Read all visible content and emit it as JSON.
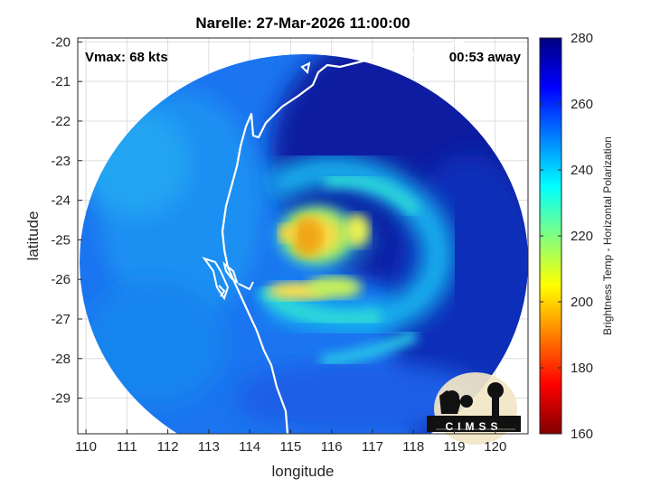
{
  "chart_data": {
    "type": "heatmap",
    "title": "Narelle: 27-Mar-2026 11:00:00",
    "xlabel": "longitude",
    "ylabel": "latitude",
    "xlim": [
      109.8,
      120.8
    ],
    "ylim": [
      -29.9,
      -19.9
    ],
    "xticks": [
      "110",
      "111",
      "112",
      "113",
      "114",
      "115",
      "116",
      "117",
      "118",
      "119",
      "120"
    ],
    "yticks": [
      "-20",
      "-21",
      "-22",
      "-23",
      "-24",
      "-25",
      "-26",
      "-27",
      "-28",
      "-29"
    ],
    "grid": true,
    "annotations": {
      "left": "Vmax: 68 kts",
      "right": "00:53 away"
    },
    "colorbar": {
      "label": "Brightness Temp - Horizontal Polarization",
      "range": [
        160,
        280
      ],
      "ticks": [
        "160",
        "180",
        "200",
        "220",
        "240",
        "260",
        "280"
      ],
      "colormap": "jet"
    },
    "storm_center": {
      "lon": 115.4,
      "lat": -25.0
    },
    "field_min_value": 190,
    "background_value": 268,
    "logo": "CIMSS"
  },
  "colors": {
    "axis": "#262626",
    "grid": "#dddddd",
    "coastline": "#ffffff"
  },
  "icons": {
    "logo": "cimss-logo-icon"
  }
}
